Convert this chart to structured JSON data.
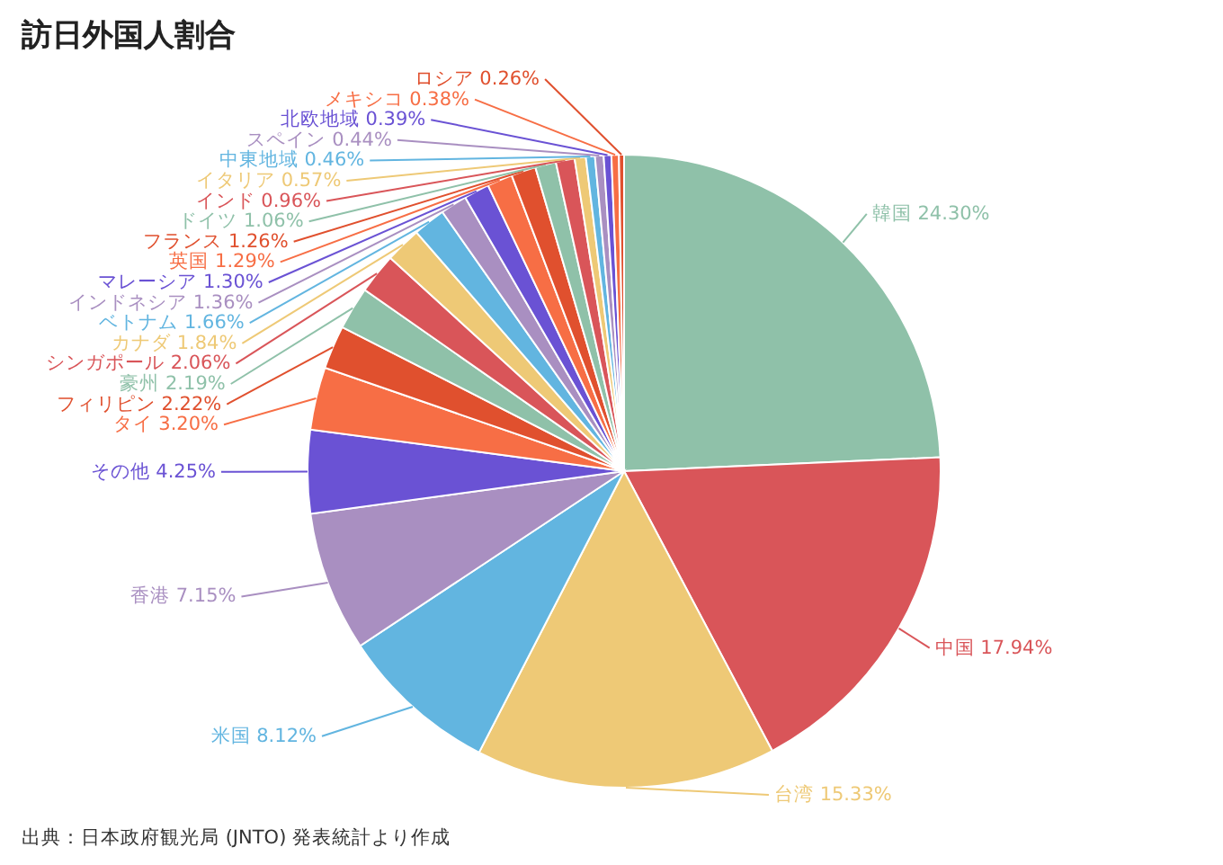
{
  "chart_data": {
    "type": "pie",
    "title": "訪日外国人割合",
    "categories": [
      "韓国",
      "中国",
      "台湾",
      "米国",
      "香港",
      "その他",
      "タイ",
      "フィリピン",
      "豪州",
      "シンガポール",
      "カナダ",
      "ベトナム",
      "インドネシア",
      "マレーシア",
      "英国",
      "フランス",
      "ドイツ",
      "インド",
      "イタリア",
      "中東地域",
      "スペイン",
      "北欧地域",
      "メキシコ",
      "ロシア"
    ],
    "values": [
      24.3,
      17.94,
      15.33,
      8.12,
      7.15,
      4.25,
      3.2,
      2.22,
      2.19,
      2.06,
      1.84,
      1.66,
      1.36,
      1.3,
      1.29,
      1.26,
      1.06,
      0.96,
      0.57,
      0.46,
      0.44,
      0.39,
      0.38,
      0.26
    ],
    "value_labels": [
      "24.30%",
      "17.94%",
      "15.33%",
      "8.12%",
      "7.15%",
      "4.25%",
      "3.20%",
      "2.22%",
      "2.19%",
      "2.06%",
      "1.84%",
      "1.66%",
      "1.36%",
      "1.30%",
      "1.29%",
      "1.26%",
      "1.06%",
      "0.96%",
      "0.57%",
      "0.46%",
      "0.44%",
      "0.39%",
      "0.38%",
      "0.26%"
    ],
    "colors": [
      "#8fc1a9",
      "#d95559",
      "#eec976",
      "#62b5e0",
      "#a98fc1",
      "#6a52d4",
      "#f76e45",
      "#e0502e",
      "#8fc1a9",
      "#d95559",
      "#eec976",
      "#62b5e0",
      "#a98fc1",
      "#6a52d4",
      "#f76e45",
      "#e0502e",
      "#8fc1a9",
      "#d95559",
      "#eec976",
      "#62b5e0",
      "#a98fc1",
      "#6a52d4",
      "#f76e45",
      "#e0502e"
    ],
    "annotations": [
      "出典：日本政府観光局 (JNTO) 発表統計より作成"
    ]
  }
}
